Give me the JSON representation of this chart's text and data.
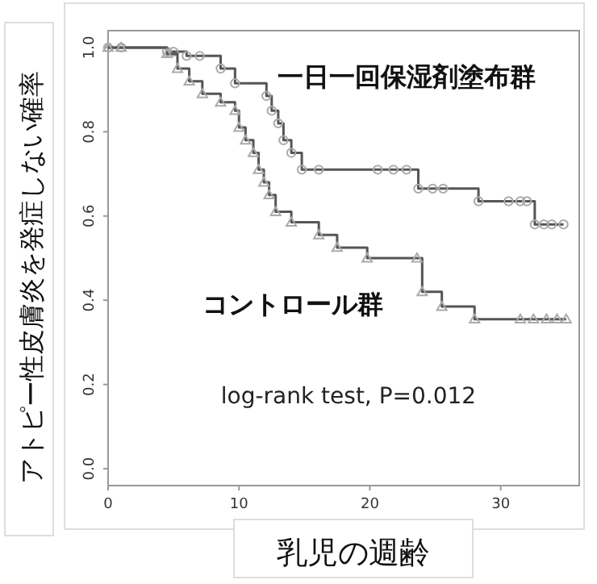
{
  "chart_data": {
    "type": "step",
    "xlabel": "乳児の週齢",
    "ylabel": "アトピー性皮膚炎を発症しない確率",
    "xlim": [
      0,
      36
    ],
    "ylim": [
      -0.04,
      1.04
    ],
    "xticks": [
      0,
      10,
      20,
      30
    ],
    "yticks": [
      {
        "value": 0,
        "label": "0.0"
      },
      {
        "value": 0.2,
        "label": "0.2"
      },
      {
        "value": 0.4,
        "label": "0.4"
      },
      {
        "value": 0.6,
        "label": "0.6"
      },
      {
        "value": 0.8,
        "label": "0.8"
      },
      {
        "value": 1,
        "label": "1.0"
      }
    ],
    "grid": false,
    "series": [
      {
        "name": "一日一回保湿剤塗布群",
        "color": "#555555",
        "marker": "circle",
        "x": [
          0,
          1,
          4.5,
          5,
          6,
          7,
          8.6,
          9.7,
          12.1,
          12.5,
          13,
          13.4,
          14,
          14.8,
          16.1,
          20.6,
          21.8,
          22.8,
          23.7,
          24.8,
          25.6,
          28.3,
          30.6,
          31.5,
          32,
          32.6,
          33.3,
          33.9,
          34.8
        ],
        "values": [
          1,
          1,
          0.99,
          0.99,
          0.98,
          0.98,
          0.95,
          0.915,
          0.885,
          0.85,
          0.82,
          0.78,
          0.75,
          0.71,
          0.71,
          0.71,
          0.71,
          0.71,
          0.665,
          0.665,
          0.665,
          0.635,
          0.635,
          0.635,
          0.635,
          0.58,
          0.58,
          0.58,
          0.58
        ]
      },
      {
        "name": "コントロール群",
        "color": "#555555",
        "marker": "triangle",
        "x": [
          0,
          1,
          4.5,
          5.3,
          6.2,
          7.2,
          8.6,
          9.7,
          10.0,
          10.5,
          11.1,
          11.5,
          11.9,
          12.3,
          12.8,
          14.0,
          16.1,
          17.5,
          19.8,
          23.6,
          24.0,
          25.5,
          28.0,
          31.5,
          32.5,
          33.5,
          34.3,
          35
        ],
        "values": [
          1,
          1,
          0.985,
          0.95,
          0.92,
          0.89,
          0.87,
          0.85,
          0.81,
          0.78,
          0.75,
          0.71,
          0.68,
          0.65,
          0.61,
          0.585,
          0.555,
          0.525,
          0.5,
          0.5,
          0.42,
          0.385,
          0.355,
          0.355,
          0.355,
          0.355,
          0.355,
          0.355
        ]
      }
    ],
    "annotations": [
      "log-rank test, P=0.012"
    ]
  }
}
